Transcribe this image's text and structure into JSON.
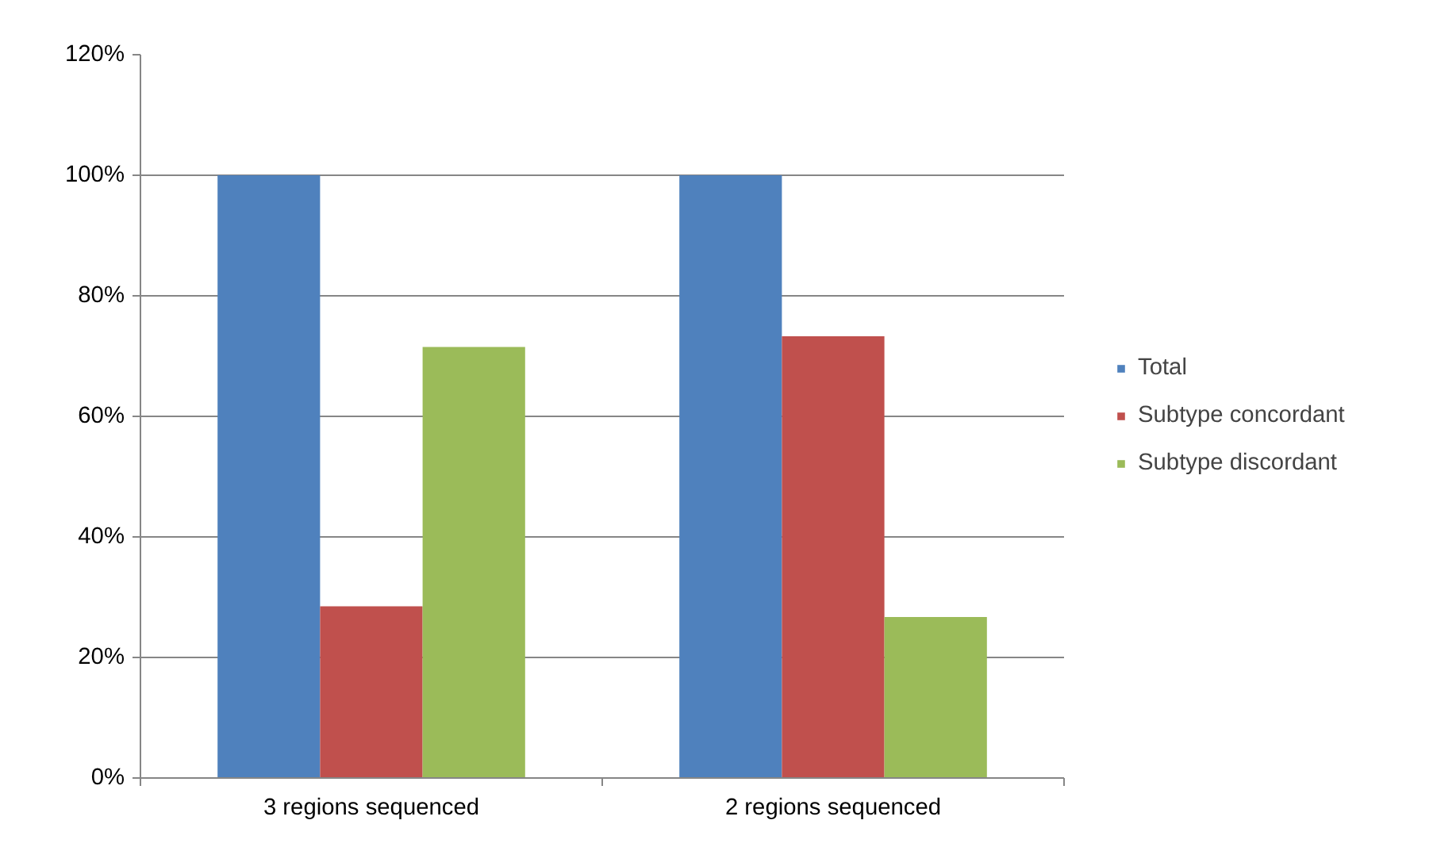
{
  "chart_data": {
    "type": "bar",
    "categories": [
      "3 regions sequenced",
      "2 regions sequenced"
    ],
    "series": [
      {
        "name": "Total",
        "color": "#4f81bd",
        "values": [
          100,
          100
        ]
      },
      {
        "name": "Subtype concordant",
        "color": "#c0504d",
        "values": [
          28.5,
          73.3
        ]
      },
      {
        "name": "Subtype discordant",
        "color": "#9bbb59",
        "values": [
          71.5,
          26.7
        ]
      }
    ],
    "ylim": [
      0,
      120
    ],
    "yticks": [
      {
        "value": 0,
        "label": "0%"
      },
      {
        "value": 20,
        "label": "20%"
      },
      {
        "value": 40,
        "label": "40%"
      },
      {
        "value": 60,
        "label": "60%"
      },
      {
        "value": 80,
        "label": "80%"
      },
      {
        "value": 100,
        "label": "100%"
      },
      {
        "value": 120,
        "label": "120%"
      }
    ],
    "grid": "y",
    "legend": "right"
  }
}
